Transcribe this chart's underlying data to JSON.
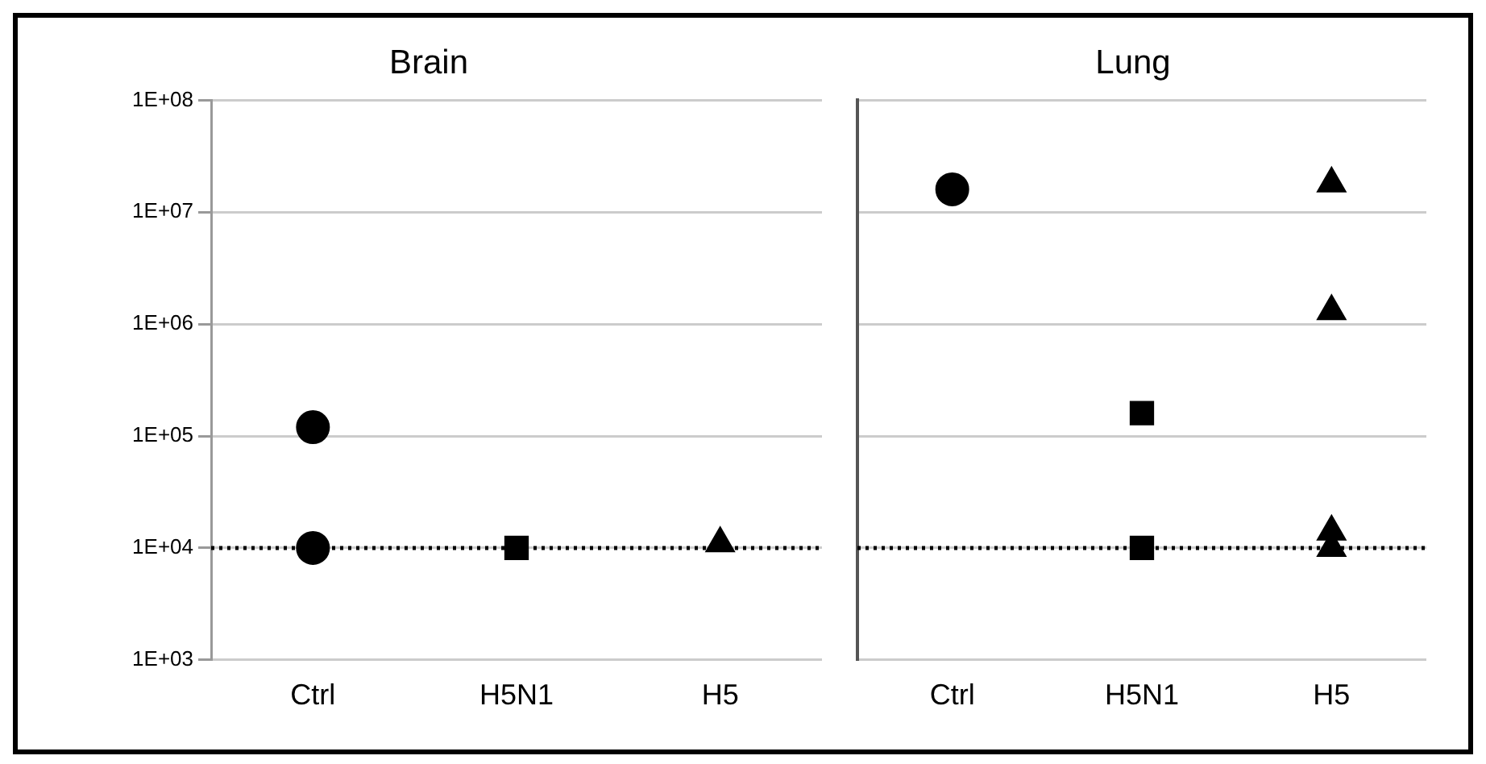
{
  "chart_data": [
    {
      "type": "scatter",
      "title": "Brain",
      "categories": [
        "Ctrl",
        "H5N1",
        "H5"
      ],
      "log": "y",
      "ylim": [
        1000,
        100000000
      ],
      "yticks": [
        {
          "value": 100000000,
          "label": "1E+08"
        },
        {
          "value": 10000000,
          "label": "1E+07"
        },
        {
          "value": 1000000,
          "label": "1E+06"
        },
        {
          "value": 100000,
          "label": "1E+05"
        },
        {
          "value": 10000,
          "label": "1E+04"
        },
        {
          "value": 1000,
          "label": "1E+03"
        }
      ],
      "grid": "y",
      "legend": false,
      "series": [
        {
          "color": "#000000",
          "marker": "circle",
          "x": [
            "Ctrl",
            "Ctrl"
          ],
          "values": [
            120000,
            10000
          ]
        },
        {
          "color": "#000000",
          "marker": "square",
          "x": [
            "H5N1"
          ],
          "values": [
            10000
          ]
        },
        {
          "color": "#000000",
          "marker": "triangle",
          "x": [
            "H5"
          ],
          "values": [
            11000
          ]
        }
      ],
      "ref_lines": [
        {
          "axis": "y",
          "value": 10000,
          "color": "#000000",
          "line_style": "dotted"
        }
      ]
    },
    {
      "type": "scatter",
      "title": "Lung",
      "categories": [
        "Ctrl",
        "H5N1",
        "H5"
      ],
      "log": "y",
      "ylim": [
        1000,
        100000000
      ],
      "grid": "y",
      "legend": false,
      "tick_labels": "x",
      "yticks": [
        {
          "value": 100000000,
          "label": null
        },
        {
          "value": 10000000,
          "label": null
        },
        {
          "value": 1000000,
          "label": null
        },
        {
          "value": 100000,
          "label": null
        },
        {
          "value": 10000,
          "label": null
        },
        {
          "value": 1000,
          "label": null
        }
      ],
      "series": [
        {
          "color": "#000000",
          "marker": "circle",
          "x": [
            "Ctrl"
          ],
          "values": [
            16000000
          ]
        },
        {
          "color": "#000000",
          "marker": "square",
          "x": [
            "H5N1",
            "H5N1"
          ],
          "values": [
            160000,
            10000
          ]
        },
        {
          "color": "#000000",
          "marker": "triangle",
          "x": [
            "H5",
            "H5",
            "H5",
            "H5"
          ],
          "values": [
            18000000,
            1300000,
            14000,
            10000
          ]
        }
      ],
      "ref_lines": [
        {
          "axis": "y",
          "value": 10000,
          "color": "#000000",
          "line_style": "dotted"
        }
      ]
    }
  ]
}
